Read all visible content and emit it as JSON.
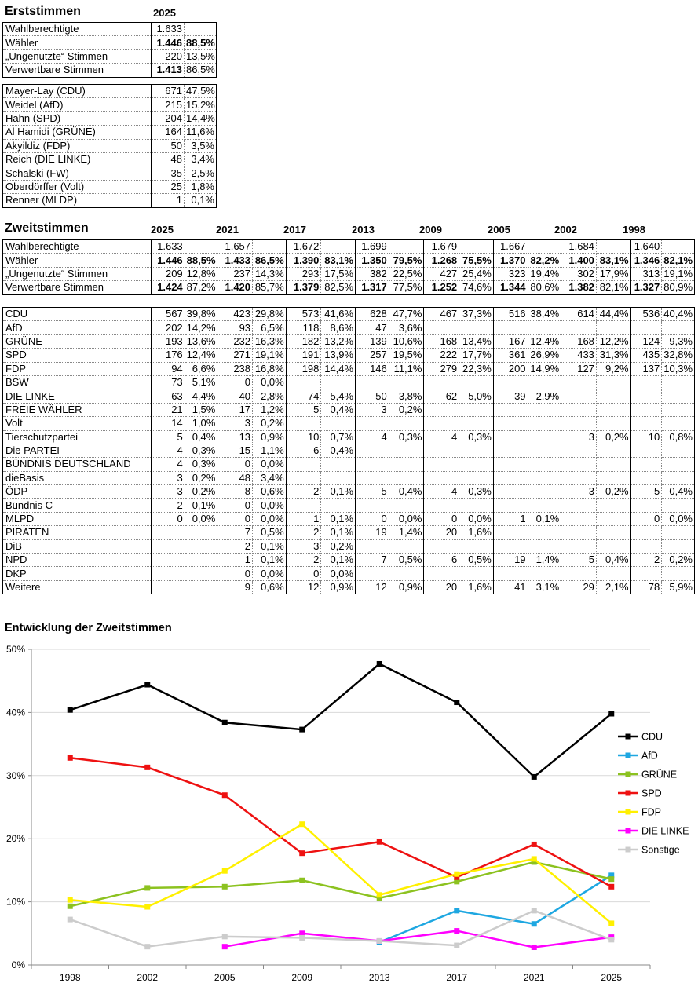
{
  "erst": {
    "title": "Erststimmen",
    "year": "2025",
    "summary": [
      {
        "label": "Wahlberechtigte",
        "num": "1.633",
        "pct": "",
        "bold_num": false,
        "bold_pct": false
      },
      {
        "label": "Wähler",
        "num": "1.446",
        "pct": "88,5%",
        "bold_num": true,
        "bold_pct": true
      },
      {
        "label": "„Ungenutzte“ Stimmen",
        "num": "220",
        "pct": "13,5%",
        "bold_num": false,
        "bold_pct": false
      },
      {
        "label": "Verwertbare Stimmen",
        "num": "1.413",
        "pct": "86,5%",
        "bold_num": true,
        "bold_pct": false
      }
    ],
    "candidates": [
      {
        "label": "Mayer-Lay (CDU)",
        "num": "671",
        "pct": "47,5%"
      },
      {
        "label": "Weidel (AfD)",
        "num": "215",
        "pct": "15,2%"
      },
      {
        "label": "Hahn (SPD)",
        "num": "204",
        "pct": "14,4%"
      },
      {
        "label": "Al Hamidi (GRÜNE)",
        "num": "164",
        "pct": "11,6%"
      },
      {
        "label": "Akyildiz (FDP)",
        "num": "50",
        "pct": "3,5%"
      },
      {
        "label": "Reich (DIE LINKE)",
        "num": "48",
        "pct": "3,4%"
      },
      {
        "label": "Schalski (FW)",
        "num": "35",
        "pct": "2,5%"
      },
      {
        "label": "Oberdörffer (Volt)",
        "num": "25",
        "pct": "1,8%"
      },
      {
        "label": "Renner (MLDP)",
        "num": "1",
        "pct": "0,1%"
      }
    ]
  },
  "zweit": {
    "title": "Zweitstimmen",
    "years": [
      "2025",
      "2021",
      "2017",
      "2013",
      "2009",
      "2005",
      "2002",
      "1998"
    ],
    "summary": [
      {
        "label": "Wahlberechtigte",
        "bold": false,
        "cells": [
          [
            "1.633",
            ""
          ],
          [
            "1.657",
            ""
          ],
          [
            "1.672",
            ""
          ],
          [
            "1.699",
            ""
          ],
          [
            "1.679",
            ""
          ],
          [
            "1.667",
            ""
          ],
          [
            "1.684",
            ""
          ],
          [
            "1.640",
            ""
          ]
        ]
      },
      {
        "label": "Wähler",
        "bold": true,
        "cells": [
          [
            "1.446",
            "88,5%"
          ],
          [
            "1.433",
            "86,5%"
          ],
          [
            "1.390",
            "83,1%"
          ],
          [
            "1.350",
            "79,5%"
          ],
          [
            "1.268",
            "75,5%"
          ],
          [
            "1.370",
            "82,2%"
          ],
          [
            "1.400",
            "83,1%"
          ],
          [
            "1.346",
            "82,1%"
          ]
        ]
      },
      {
        "label": "„Ungenutzte“ Stimmen",
        "bold": false,
        "cells": [
          [
            "209",
            "12,8%"
          ],
          [
            "237",
            "14,3%"
          ],
          [
            "293",
            "17,5%"
          ],
          [
            "382",
            "22,5%"
          ],
          [
            "427",
            "25,4%"
          ],
          [
            "323",
            "19,4%"
          ],
          [
            "302",
            "17,9%"
          ],
          [
            "313",
            "19,1%"
          ]
        ]
      },
      {
        "label": "Verwertbare Stimmen",
        "bold": "numonly",
        "cells": [
          [
            "1.424",
            "87,2%"
          ],
          [
            "1.420",
            "85,7%"
          ],
          [
            "1.379",
            "82,5%"
          ],
          [
            "1.317",
            "77,5%"
          ],
          [
            "1.252",
            "74,6%"
          ],
          [
            "1.344",
            "80,6%"
          ],
          [
            "1.382",
            "82,1%"
          ],
          [
            "1.327",
            "80,9%"
          ]
        ]
      }
    ],
    "parties": [
      {
        "label": "CDU",
        "cells": [
          [
            "567",
            "39,8%"
          ],
          [
            "423",
            "29,8%"
          ],
          [
            "573",
            "41,6%"
          ],
          [
            "628",
            "47,7%"
          ],
          [
            "467",
            "37,3%"
          ],
          [
            "516",
            "38,4%"
          ],
          [
            "614",
            "44,4%"
          ],
          [
            "536",
            "40,4%"
          ]
        ]
      },
      {
        "label": "AfD",
        "cells": [
          [
            "202",
            "14,2%"
          ],
          [
            "93",
            "6,5%"
          ],
          [
            "118",
            "8,6%"
          ],
          [
            "47",
            "3,6%"
          ],
          [
            "",
            ""
          ],
          [
            "",
            ""
          ],
          [
            "",
            ""
          ],
          [
            "",
            ""
          ]
        ]
      },
      {
        "label": "GRÜNE",
        "cells": [
          [
            "193",
            "13,6%"
          ],
          [
            "232",
            "16,3%"
          ],
          [
            "182",
            "13,2%"
          ],
          [
            "139",
            "10,6%"
          ],
          [
            "168",
            "13,4%"
          ],
          [
            "167",
            "12,4%"
          ],
          [
            "168",
            "12,2%"
          ],
          [
            "124",
            "9,3%"
          ]
        ]
      },
      {
        "label": "SPD",
        "cells": [
          [
            "176",
            "12,4%"
          ],
          [
            "271",
            "19,1%"
          ],
          [
            "191",
            "13,9%"
          ],
          [
            "257",
            "19,5%"
          ],
          [
            "222",
            "17,7%"
          ],
          [
            "361",
            "26,9%"
          ],
          [
            "433",
            "31,3%"
          ],
          [
            "435",
            "32,8%"
          ]
        ]
      },
      {
        "label": "FDP",
        "cells": [
          [
            "94",
            "6,6%"
          ],
          [
            "238",
            "16,8%"
          ],
          [
            "198",
            "14,4%"
          ],
          [
            "146",
            "11,1%"
          ],
          [
            "279",
            "22,3%"
          ],
          [
            "200",
            "14,9%"
          ],
          [
            "127",
            "9,2%"
          ],
          [
            "137",
            "10,3%"
          ]
        ]
      },
      {
        "label": "BSW",
        "cells": [
          [
            "73",
            "5,1%"
          ],
          [
            "0",
            "0,0%"
          ],
          [
            "",
            ""
          ],
          [
            "",
            ""
          ],
          [
            "",
            ""
          ],
          [
            "",
            ""
          ],
          [
            "",
            ""
          ],
          [
            "",
            ""
          ]
        ]
      },
      {
        "label": "DIE LINKE",
        "cells": [
          [
            "63",
            "4,4%"
          ],
          [
            "40",
            "2,8%"
          ],
          [
            "74",
            "5,4%"
          ],
          [
            "50",
            "3,8%"
          ],
          [
            "62",
            "5,0%"
          ],
          [
            "39",
            "2,9%"
          ],
          [
            "",
            ""
          ],
          [
            "",
            ""
          ]
        ]
      },
      {
        "label": "FREIE WÄHLER",
        "cells": [
          [
            "21",
            "1,5%"
          ],
          [
            "17",
            "1,2%"
          ],
          [
            "5",
            "0,4%"
          ],
          [
            "3",
            "0,2%"
          ],
          [
            "",
            ""
          ],
          [
            "",
            ""
          ],
          [
            "",
            ""
          ],
          [
            "",
            ""
          ]
        ]
      },
      {
        "label": "Volt",
        "cells": [
          [
            "14",
            "1,0%"
          ],
          [
            "3",
            "0,2%"
          ],
          [
            "",
            ""
          ],
          [
            "",
            ""
          ],
          [
            "",
            ""
          ],
          [
            "",
            ""
          ],
          [
            "",
            ""
          ],
          [
            "",
            ""
          ]
        ]
      },
      {
        "label": "Tierschutzpartei",
        "cells": [
          [
            "5",
            "0,4%"
          ],
          [
            "13",
            "0,9%"
          ],
          [
            "10",
            "0,7%"
          ],
          [
            "4",
            "0,3%"
          ],
          [
            "4",
            "0,3%"
          ],
          [
            "",
            ""
          ],
          [
            "3",
            "0,2%"
          ],
          [
            "10",
            "0,8%"
          ]
        ]
      },
      {
        "label": "Die PARTEI",
        "cells": [
          [
            "4",
            "0,3%"
          ],
          [
            "15",
            "1,1%"
          ],
          [
            "6",
            "0,4%"
          ],
          [
            "",
            ""
          ],
          [
            "",
            ""
          ],
          [
            "",
            ""
          ],
          [
            "",
            ""
          ],
          [
            "",
            ""
          ]
        ]
      },
      {
        "label": "BÜNDNIS DEUTSCHLAND",
        "cells": [
          [
            "4",
            "0,3%"
          ],
          [
            "0",
            "0,0%"
          ],
          [
            "",
            ""
          ],
          [
            "",
            ""
          ],
          [
            "",
            ""
          ],
          [
            "",
            ""
          ],
          [
            "",
            ""
          ],
          [
            "",
            ""
          ]
        ]
      },
      {
        "label": "dieBasis",
        "cells": [
          [
            "3",
            "0,2%"
          ],
          [
            "48",
            "3,4%"
          ],
          [
            "",
            ""
          ],
          [
            "",
            ""
          ],
          [
            "",
            ""
          ],
          [
            "",
            ""
          ],
          [
            "",
            ""
          ],
          [
            "",
            ""
          ]
        ]
      },
      {
        "label": "ÖDP",
        "cells": [
          [
            "3",
            "0,2%"
          ],
          [
            "8",
            "0,6%"
          ],
          [
            "2",
            "0,1%"
          ],
          [
            "5",
            "0,4%"
          ],
          [
            "4",
            "0,3%"
          ],
          [
            "",
            ""
          ],
          [
            "3",
            "0,2%"
          ],
          [
            "5",
            "0,4%"
          ]
        ]
      },
      {
        "label": "Bündnis C",
        "cells": [
          [
            "2",
            "0,1%"
          ],
          [
            "0",
            "0,0%"
          ],
          [
            "",
            ""
          ],
          [
            "",
            ""
          ],
          [
            "",
            ""
          ],
          [
            "",
            ""
          ],
          [
            "",
            ""
          ],
          [
            "",
            ""
          ]
        ]
      },
      {
        "label": "MLPD",
        "cells": [
          [
            "0",
            "0,0%"
          ],
          [
            "0",
            "0,0%"
          ],
          [
            "1",
            "0,1%"
          ],
          [
            "0",
            "0,0%"
          ],
          [
            "0",
            "0,0%"
          ],
          [
            "1",
            "0,1%"
          ],
          [
            "",
            ""
          ],
          [
            "0",
            "0,0%"
          ]
        ]
      },
      {
        "label": "PIRATEN",
        "cells": [
          [
            "",
            ""
          ],
          [
            "7",
            "0,5%"
          ],
          [
            "2",
            "0,1%"
          ],
          [
            "19",
            "1,4%"
          ],
          [
            "20",
            "1,6%"
          ],
          [
            "",
            ""
          ],
          [
            "",
            ""
          ],
          [
            "",
            ""
          ]
        ]
      },
      {
        "label": "DiB",
        "cells": [
          [
            "",
            ""
          ],
          [
            "2",
            "0,1%"
          ],
          [
            "3",
            "0,2%"
          ],
          [
            "",
            ""
          ],
          [
            "",
            ""
          ],
          [
            "",
            ""
          ],
          [
            "",
            ""
          ],
          [
            "",
            ""
          ]
        ]
      },
      {
        "label": "NPD",
        "cells": [
          [
            "",
            ""
          ],
          [
            "1",
            "0,1%"
          ],
          [
            "2",
            "0,1%"
          ],
          [
            "7",
            "0,5%"
          ],
          [
            "6",
            "0,5%"
          ],
          [
            "19",
            "1,4%"
          ],
          [
            "5",
            "0,4%"
          ],
          [
            "2",
            "0,2%"
          ]
        ]
      },
      {
        "label": "DKP",
        "cells": [
          [
            "",
            ""
          ],
          [
            "0",
            "0,0%"
          ],
          [
            "0",
            "0,0%"
          ],
          [
            "",
            ""
          ],
          [
            "",
            ""
          ],
          [
            "",
            ""
          ],
          [
            "",
            ""
          ],
          [
            "",
            ""
          ]
        ]
      },
      {
        "label": "Weitere",
        "cells": [
          [
            "",
            ""
          ],
          [
            "9",
            "0,6%"
          ],
          [
            "12",
            "0,9%"
          ],
          [
            "12",
            "0,9%"
          ],
          [
            "20",
            "1,6%"
          ],
          [
            "41",
            "3,1%"
          ],
          [
            "29",
            "2,1%"
          ],
          [
            "78",
            "5,9%"
          ]
        ]
      }
    ]
  },
  "chart_data": {
    "type": "line",
    "title": "Entwicklung der Zweitstimmen",
    "categories": [
      "1998",
      "2002",
      "2005",
      "2009",
      "2013",
      "2017",
      "2021",
      "2025"
    ],
    "y_ticks": [
      "0%",
      "10%",
      "20%",
      "30%",
      "40%",
      "50%"
    ],
    "ylim": [
      0,
      50
    ],
    "grid": true,
    "legend_position": "right",
    "series": [
      {
        "name": "CDU",
        "color": "#000000",
        "values": [
          40.4,
          44.4,
          38.4,
          37.3,
          47.7,
          41.6,
          29.8,
          39.8
        ]
      },
      {
        "name": "AfD",
        "color": "#1EA7E1",
        "values": [
          null,
          null,
          null,
          null,
          3.6,
          8.6,
          6.5,
          14.2
        ]
      },
      {
        "name": "GRÜNE",
        "color": "#8CC220",
        "values": [
          9.3,
          12.2,
          12.4,
          13.4,
          10.6,
          13.2,
          16.3,
          13.6
        ]
      },
      {
        "name": "SPD",
        "color": "#EE1111",
        "values": [
          32.8,
          31.3,
          26.9,
          17.7,
          19.5,
          13.9,
          19.1,
          12.4
        ]
      },
      {
        "name": "FDP",
        "color": "#FFF000",
        "values": [
          10.3,
          9.2,
          14.9,
          22.3,
          11.1,
          14.4,
          16.8,
          6.6
        ]
      },
      {
        "name": "DIE LINKE",
        "color": "#FF00FF",
        "values": [
          null,
          null,
          2.9,
          5.0,
          3.8,
          5.4,
          2.8,
          4.4
        ]
      },
      {
        "name": "Sonstige",
        "color": "#CCCCCC",
        "values": [
          7.2,
          2.9,
          4.5,
          4.3,
          3.8,
          3.1,
          8.6,
          4.0
        ]
      }
    ]
  }
}
